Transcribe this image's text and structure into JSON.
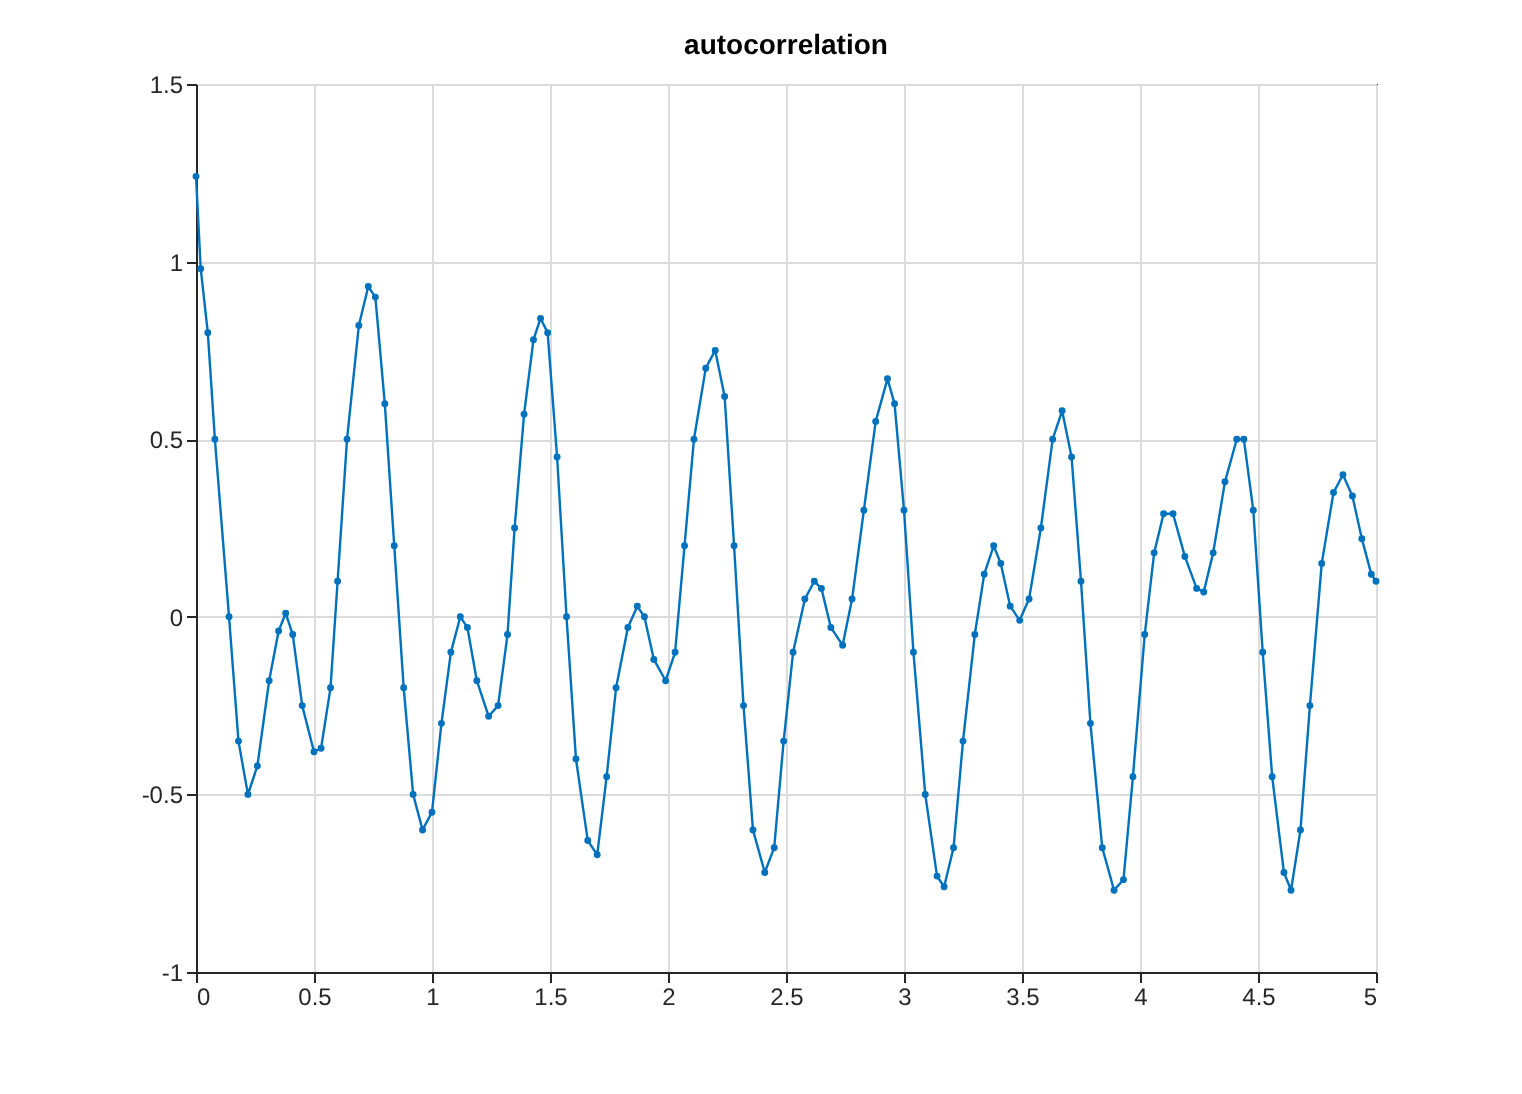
{
  "chart_data": {
    "type": "line",
    "title": "autocorrelation",
    "x": [
      0,
      0.02,
      0.05,
      0.08,
      0.14,
      0.18,
      0.22,
      0.26,
      0.31,
      0.35,
      0.38,
      0.41,
      0.45,
      0.5,
      0.53,
      0.57,
      0.6,
      0.64,
      0.69,
      0.73,
      0.76,
      0.8,
      0.84,
      0.88,
      0.92,
      0.96,
      1.0,
      1.04,
      1.08,
      1.12,
      1.15,
      1.19,
      1.24,
      1.28,
      1.32,
      1.35,
      1.39,
      1.43,
      1.46,
      1.49,
      1.53,
      1.57,
      1.61,
      1.66,
      1.7,
      1.74,
      1.78,
      1.83,
      1.87,
      1.9,
      1.94,
      1.99,
      2.03,
      2.07,
      2.11,
      2.16,
      2.2,
      2.24,
      2.28,
      2.32,
      2.36,
      2.41,
      2.45,
      2.49,
      2.53,
      2.58,
      2.62,
      2.65,
      2.69,
      2.74,
      2.78,
      2.83,
      2.88,
      2.93,
      2.96,
      3.0,
      3.04,
      3.09,
      3.14,
      3.17,
      3.21,
      3.25,
      3.3,
      3.34,
      3.38,
      3.41,
      3.45,
      3.49,
      3.53,
      3.58,
      3.63,
      3.67,
      3.71,
      3.75,
      3.79,
      3.84,
      3.89,
      3.93,
      3.97,
      4.02,
      4.06,
      4.1,
      4.14,
      4.19,
      4.24,
      4.27,
      4.31,
      4.36,
      4.41,
      4.44,
      4.48,
      4.52,
      4.56,
      4.61,
      4.64,
      4.68,
      4.72,
      4.77,
      4.82,
      4.86,
      4.9,
      4.94,
      4.98,
      5.0
    ],
    "series": [
      {
        "color": "#0072bd",
        "values": [
          1.24,
          0.98,
          0.8,
          0.5,
          0,
          -0.35,
          -0.5,
          -0.42,
          -0.18,
          -0.04,
          0.01,
          -0.05,
          -0.25,
          -0.38,
          -0.37,
          -0.2,
          0.1,
          0.5,
          0.82,
          0.93,
          0.9,
          0.6,
          0.2,
          -0.2,
          -0.5,
          -0.6,
          -0.55,
          -0.3,
          -0.1,
          0.0,
          -0.03,
          -0.18,
          -0.28,
          -0.25,
          -0.05,
          0.25,
          0.57,
          0.78,
          0.84,
          0.8,
          0.45,
          0,
          -0.4,
          -0.63,
          -0.67,
          -0.45,
          -0.2,
          -0.03,
          0.03,
          0.0,
          -0.12,
          -0.18,
          -0.1,
          0.2,
          0.5,
          0.7,
          0.75,
          0.62,
          0.2,
          -0.25,
          -0.6,
          -0.72,
          -0.65,
          -0.35,
          -0.1,
          0.05,
          0.1,
          0.08,
          -0.03,
          -0.08,
          0.05,
          0.3,
          0.55,
          0.67,
          0.6,
          0.3,
          -0.1,
          -0.5,
          -0.73,
          -0.76,
          -0.65,
          -0.35,
          -0.05,
          0.12,
          0.2,
          0.15,
          0.03,
          -0.01,
          0.05,
          0.25,
          0.5,
          0.58,
          0.45,
          0.1,
          -0.3,
          -0.65,
          -0.77,
          -0.74,
          -0.45,
          -0.05,
          0.18,
          0.29,
          0.29,
          0.17,
          0.08,
          0.07,
          0.18,
          0.38,
          0.5,
          0.5,
          0.3,
          -0.1,
          -0.45,
          -0.72,
          -0.77,
          -0.6,
          -0.25,
          0.15,
          0.35,
          0.4,
          0.34,
          0.22,
          0.12,
          0.1
        ]
      }
    ],
    "xlim": [
      0,
      5
    ],
    "xticks": [
      0,
      0.5,
      1,
      1.5,
      2,
      2.5,
      3,
      3.5,
      4,
      4.5,
      5
    ],
    "ylim": [
      -1,
      1.5
    ],
    "yticks": [
      -1,
      -0.5,
      0,
      0.5,
      1,
      1.5
    ],
    "grid": true,
    "marker": "circle",
    "line_style": "solid"
  }
}
